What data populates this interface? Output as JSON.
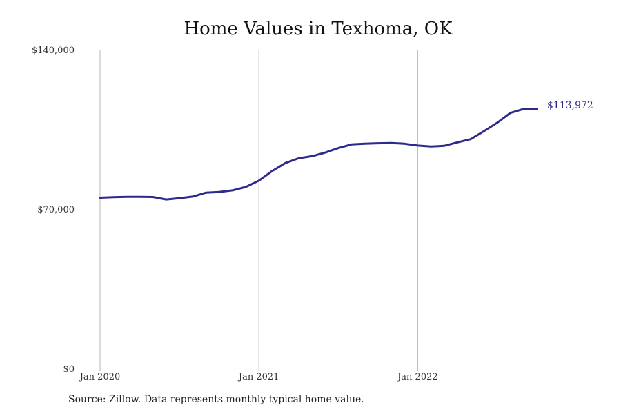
{
  "chart_data": {
    "type": "line",
    "title": "Home Values in Texhoma, OK",
    "xlabel": "",
    "ylabel": "",
    "ylim": [
      0,
      140000
    ],
    "y_ticks": [
      {
        "value": 0,
        "label": "$0"
      },
      {
        "value": 70000,
        "label": "$70,000"
      },
      {
        "value": 140000,
        "label": "$140,000"
      }
    ],
    "x_ticks": [
      {
        "x": "2020-01",
        "label": "Jan 2020"
      },
      {
        "x": "2021-01",
        "label": "Jan 2021"
      },
      {
        "x": "2022-01",
        "label": "Jan 2022"
      }
    ],
    "grid": "vertical lines at year ticks",
    "line_color": "#2e2a8c",
    "series": [
      {
        "x": [
          "2020-01",
          "2020-02",
          "2020-03",
          "2020-04",
          "2020-05",
          "2020-06",
          "2020-07",
          "2020-08",
          "2020-09",
          "2020-10",
          "2020-11",
          "2020-12",
          "2021-01",
          "2021-02",
          "2021-03",
          "2021-04",
          "2021-05",
          "2021-06",
          "2021-07",
          "2021-08",
          "2021-09",
          "2021-10",
          "2021-11",
          "2021-12",
          "2022-01",
          "2022-02",
          "2022-03",
          "2022-04",
          "2022-05",
          "2022-06",
          "2022-07",
          "2022-08",
          "2022-09",
          "2022-10"
        ],
        "values": [
          75000,
          75200,
          75400,
          75350,
          75300,
          74200,
          74800,
          75500,
          77200,
          77500,
          78200,
          79700,
          82500,
          86700,
          90200,
          92300,
          93200,
          94800,
          96800,
          98400,
          98700,
          98900,
          99000,
          98700,
          97900,
          97500,
          97800,
          99300,
          100700,
          104200,
          107900,
          112200,
          113972,
          113972
        ],
        "end_label": "$113,972"
      }
    ]
  },
  "footer": {
    "source": "Source: Zillow. Data represents monthly typical home value."
  }
}
